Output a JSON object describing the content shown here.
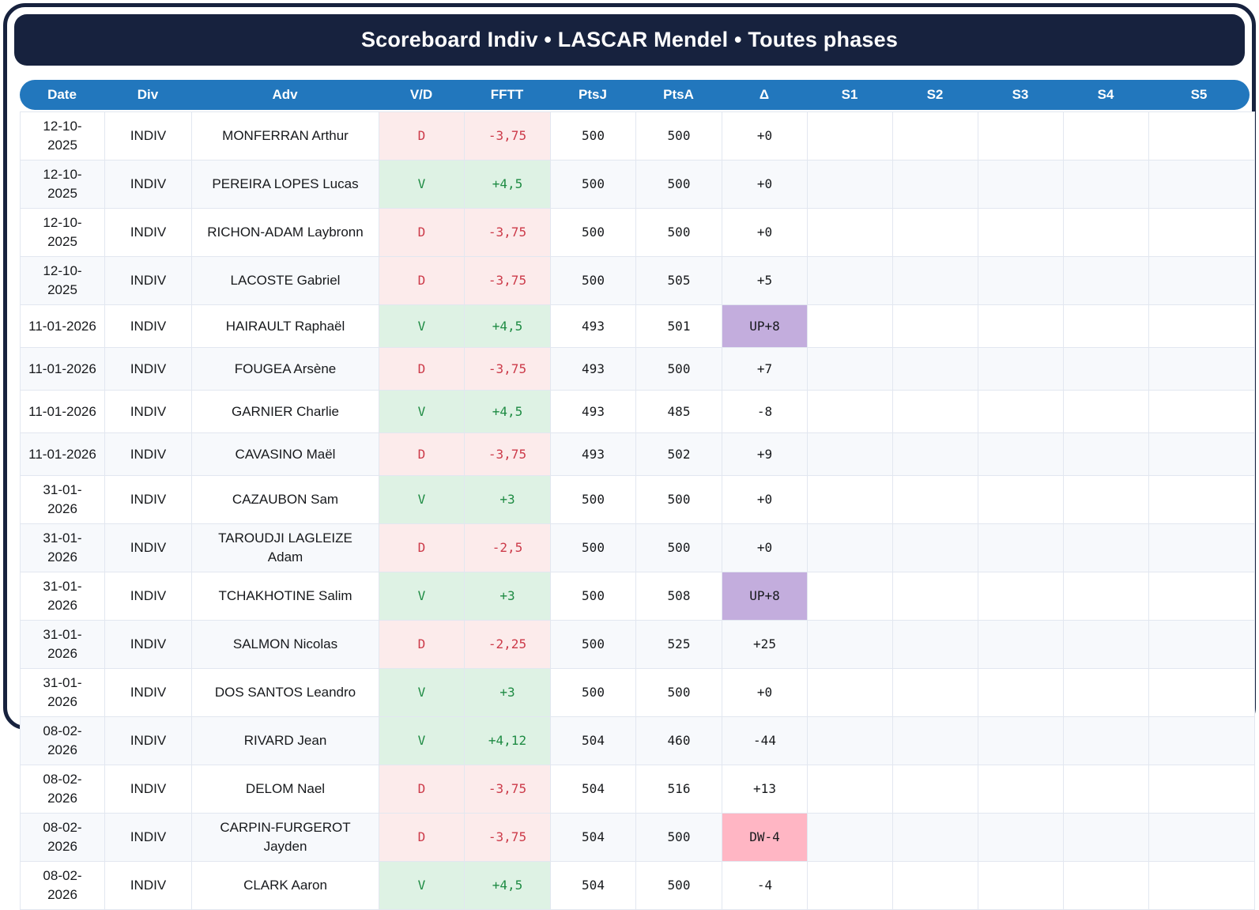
{
  "title": "Scoreboard Indiv • LASCAR Mendel • Toutes phases",
  "columns": [
    "Date",
    "Div",
    "Adv",
    "V/D",
    "FFTT",
    "PtsJ",
    "PtsA",
    "Δ",
    "S1",
    "S2",
    "S3",
    "S4",
    "S5"
  ],
  "colors": {
    "frame_navy": "#17223e",
    "header_blue": "#2277bd",
    "row_alt": "#f7f9fc",
    "cell_border": "#e2e7f0",
    "win_bg": "#def2e4",
    "win_text": "#1e8b43",
    "loss_bg": "#fcebeb",
    "loss_text": "#cc3a49",
    "delta_up_bg": "#c3addd",
    "delta_down_bg": "#ffb6c4"
  },
  "table": {
    "rows": [
      {
        "date": "12-10-2025",
        "div": "INDIV",
        "adv": "MONFERRAN Arthur",
        "vd": "D",
        "fftt": "-3,75",
        "ptsj": "500",
        "ptsa": "500",
        "delta": "+0",
        "delta_type": "normal",
        "sets": [
          "",
          "",
          "",
          "",
          ""
        ]
      },
      {
        "date": "12-10-2025",
        "div": "INDIV",
        "adv": "PEREIRA LOPES Lucas",
        "vd": "V",
        "fftt": "+4,5",
        "ptsj": "500",
        "ptsa": "500",
        "delta": "+0",
        "delta_type": "normal",
        "sets": [
          "",
          "",
          "",
          "",
          ""
        ]
      },
      {
        "date": "12-10-2025",
        "div": "INDIV",
        "adv": "RICHON-ADAM Laybronn",
        "vd": "D",
        "fftt": "-3,75",
        "ptsj": "500",
        "ptsa": "500",
        "delta": "+0",
        "delta_type": "normal",
        "sets": [
          "",
          "",
          "",
          "",
          ""
        ]
      },
      {
        "date": "12-10-2025",
        "div": "INDIV",
        "adv": "LACOSTE Gabriel",
        "vd": "D",
        "fftt": "-3,75",
        "ptsj": "500",
        "ptsa": "505",
        "delta": "+5",
        "delta_type": "normal",
        "sets": [
          "",
          "",
          "",
          "",
          ""
        ]
      },
      {
        "date": "11-01-2026",
        "div": "INDIV",
        "adv": "HAIRAULT Raphaël",
        "vd": "V",
        "fftt": "+4,5",
        "ptsj": "493",
        "ptsa": "501",
        "delta": "UP+8",
        "delta_type": "up",
        "sets": [
          "",
          "",
          "",
          "",
          ""
        ]
      },
      {
        "date": "11-01-2026",
        "div": "INDIV",
        "adv": "FOUGEA Arsène",
        "vd": "D",
        "fftt": "-3,75",
        "ptsj": "493",
        "ptsa": "500",
        "delta": "+7",
        "delta_type": "normal",
        "sets": [
          "",
          "",
          "",
          "",
          ""
        ]
      },
      {
        "date": "11-01-2026",
        "div": "INDIV",
        "adv": "GARNIER Charlie",
        "vd": "V",
        "fftt": "+4,5",
        "ptsj": "493",
        "ptsa": "485",
        "delta": "-8",
        "delta_type": "normal",
        "sets": [
          "",
          "",
          "",
          "",
          ""
        ]
      },
      {
        "date": "11-01-2026",
        "div": "INDIV",
        "adv": "CAVASINO Maël",
        "vd": "D",
        "fftt": "-3,75",
        "ptsj": "493",
        "ptsa": "502",
        "delta": "+9",
        "delta_type": "normal",
        "sets": [
          "",
          "",
          "",
          "",
          ""
        ]
      },
      {
        "date": "31-01-2026",
        "div": "INDIV",
        "adv": "CAZAUBON Sam",
        "vd": "V",
        "fftt": "+3",
        "ptsj": "500",
        "ptsa": "500",
        "delta": "+0",
        "delta_type": "normal",
        "sets": [
          "",
          "",
          "",
          "",
          ""
        ]
      },
      {
        "date": "31-01-2026",
        "div": "INDIV",
        "adv": "TAROUDJI LAGLEIZE Adam",
        "vd": "D",
        "fftt": "-2,5",
        "ptsj": "500",
        "ptsa": "500",
        "delta": "+0",
        "delta_type": "normal",
        "sets": [
          "",
          "",
          "",
          "",
          ""
        ]
      },
      {
        "date": "31-01-2026",
        "div": "INDIV",
        "adv": "TCHAKHOTINE Salim",
        "vd": "V",
        "fftt": "+3",
        "ptsj": "500",
        "ptsa": "508",
        "delta": "UP+8",
        "delta_type": "up",
        "sets": [
          "",
          "",
          "",
          "",
          ""
        ]
      },
      {
        "date": "31-01-2026",
        "div": "INDIV",
        "adv": "SALMON Nicolas",
        "vd": "D",
        "fftt": "-2,25",
        "ptsj": "500",
        "ptsa": "525",
        "delta": "+25",
        "delta_type": "normal",
        "sets": [
          "",
          "",
          "",
          "",
          ""
        ]
      },
      {
        "date": "31-01-2026",
        "div": "INDIV",
        "adv": "DOS SANTOS Leandro",
        "vd": "V",
        "fftt": "+3",
        "ptsj": "500",
        "ptsa": "500",
        "delta": "+0",
        "delta_type": "normal",
        "sets": [
          "",
          "",
          "",
          "",
          ""
        ]
      },
      {
        "date": "08-02-2026",
        "div": "INDIV",
        "adv": "RIVARD Jean",
        "vd": "V",
        "fftt": "+4,12",
        "ptsj": "504",
        "ptsa": "460",
        "delta": "-44",
        "delta_type": "normal",
        "sets": [
          "",
          "",
          "",
          "",
          ""
        ]
      },
      {
        "date": "08-02-2026",
        "div": "INDIV",
        "adv": "DELOM Nael",
        "vd": "D",
        "fftt": "-3,75",
        "ptsj": "504",
        "ptsa": "516",
        "delta": "+13",
        "delta_type": "normal",
        "sets": [
          "",
          "",
          "",
          "",
          ""
        ]
      },
      {
        "date": "08-02-2026",
        "div": "INDIV",
        "adv": "CARPIN-FURGEROT Jayden",
        "vd": "D",
        "fftt": "-3,75",
        "ptsj": "504",
        "ptsa": "500",
        "delta": "DW-4",
        "delta_type": "down",
        "sets": [
          "",
          "",
          "",
          "",
          ""
        ]
      },
      {
        "date": "08-02-2026",
        "div": "INDIV",
        "adv": "CLARK Aaron",
        "vd": "V",
        "fftt": "+4,5",
        "ptsj": "504",
        "ptsa": "500",
        "delta": "-4",
        "delta_type": "normal",
        "sets": [
          "",
          "",
          "",
          "",
          ""
        ]
      }
    ]
  }
}
